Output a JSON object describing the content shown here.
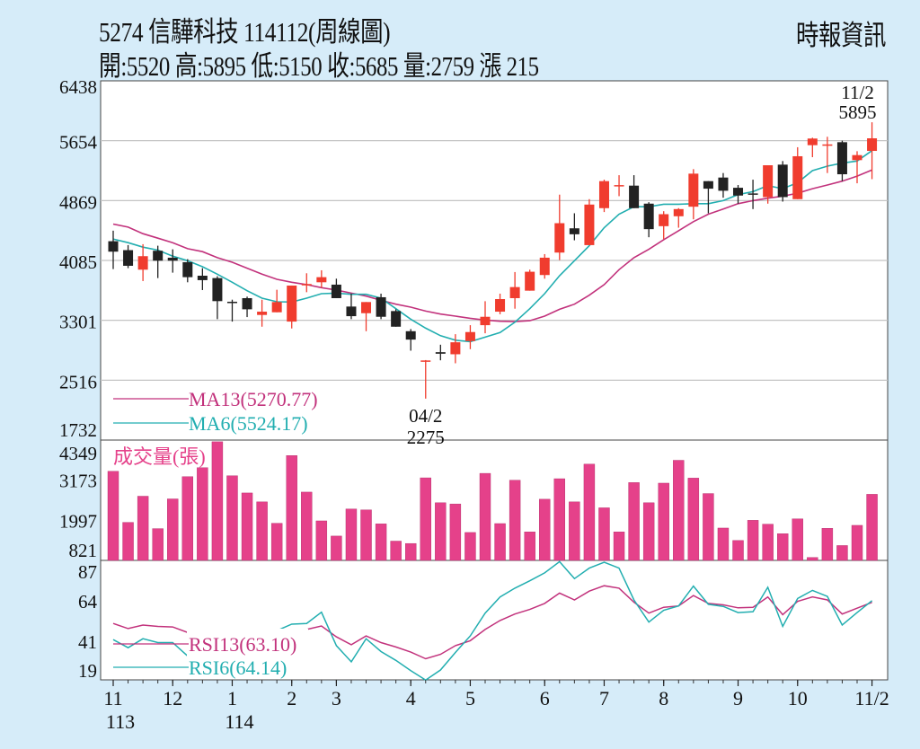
{
  "header": {
    "title": "5274  信驊科技 114112(周線圖)",
    "ohlc_line": "開:5520 高:5895 低:5150 收:5685 量:2759 漲 215",
    "source": "時報資訊"
  },
  "colors": {
    "background": "#d6ecf9",
    "up": "#f03c2e",
    "down": "#222222",
    "ma13": "#c2327c",
    "ma6": "#22aeb0",
    "volume": "#e5418a",
    "rsi13": "#c2327c",
    "rsi6": "#22aeb0"
  },
  "chart_data": [
    {
      "type": "candlestick",
      "panel": "price",
      "ylim": [
        1732,
        6438
      ],
      "yticks": [
        6438,
        5654,
        4869,
        4085,
        3301,
        2516,
        1732
      ],
      "grid": true,
      "ohlc": [
        [
          4337,
          4475,
          3972,
          4200
        ],
        [
          4220,
          4286,
          3984,
          4015
        ],
        [
          3964,
          4298,
          3815,
          4141
        ],
        [
          4212,
          4278,
          3854,
          4082
        ],
        [
          4121,
          4231,
          3925,
          4082
        ],
        [
          4062,
          4102,
          3799,
          3866
        ],
        [
          3885,
          3984,
          3697,
          3827
        ],
        [
          3854,
          3878,
          3316,
          3552
        ],
        [
          3544,
          3571,
          3284,
          3540
        ],
        [
          3591,
          3611,
          3343,
          3445
        ],
        [
          3371,
          3571,
          3217,
          3414
        ],
        [
          3406,
          3701,
          3406,
          3540
        ],
        [
          3284,
          3756,
          3194,
          3756
        ],
        [
          3768,
          3917,
          3669,
          3776
        ],
        [
          3799,
          3956,
          3728,
          3866
        ],
        [
          3768,
          3846,
          3591,
          3591
        ],
        [
          3481,
          3650,
          3316,
          3355
        ],
        [
          3394,
          3540,
          3158,
          3540
        ],
        [
          3603,
          3650,
          3316,
          3347
        ],
        [
          3422,
          3445,
          3217,
          3217
        ],
        [
          3158,
          3186,
          2903,
          3048
        ],
        [
          2765,
          2780,
          2275,
          2775
        ],
        [
          2883,
          2981,
          2777,
          2863
        ],
        [
          2856,
          3119,
          2738,
          3013
        ],
        [
          3029,
          3237,
          2923,
          3147
        ],
        [
          3237,
          3551,
          3131,
          3347
        ],
        [
          3414,
          3650,
          3380,
          3579
        ],
        [
          3591,
          3933,
          3453,
          3736
        ],
        [
          3689,
          3964,
          3689,
          3937
        ],
        [
          3894,
          4168,
          3846,
          4121
        ],
        [
          4188,
          4947,
          4090,
          4573
        ],
        [
          4506,
          4703,
          4349,
          4428
        ],
        [
          4286,
          4888,
          4286,
          4817
        ],
        [
          4770,
          5143,
          4719,
          5124
        ],
        [
          5070,
          5202,
          4927,
          5072
        ],
        [
          5065,
          5202,
          4770,
          4770
        ],
        [
          4829,
          4848,
          4389,
          4495
        ],
        [
          4534,
          4730,
          4365,
          4691
        ],
        [
          4664,
          4770,
          4514,
          4758
        ],
        [
          4789,
          5281,
          4624,
          5222
        ],
        [
          5124,
          5124,
          4703,
          5025
        ],
        [
          5171,
          5230,
          4907,
          4998
        ],
        [
          5037,
          5073,
          4829,
          4935
        ],
        [
          4963,
          5143,
          4758,
          4955
        ],
        [
          4915,
          5332,
          4829,
          5332
        ],
        [
          5340,
          5387,
          4856,
          4915
        ],
        [
          4888,
          5568,
          4888,
          5450
        ],
        [
          5595,
          5693,
          5438,
          5682
        ],
        [
          5600,
          5705,
          5230,
          5605
        ],
        [
          5634,
          5654,
          5124,
          5214
        ],
        [
          5399,
          5516,
          5096,
          5465
        ],
        [
          5520,
          5895,
          5150,
          5685
        ]
      ],
      "series": [
        {
          "name": "MA13(5270.77)",
          "key": "ma13",
          "values": [
            4561,
            4522,
            4436,
            4377,
            4318,
            4239,
            4200,
            4121,
            4062,
            3984,
            3905,
            3838,
            3799,
            3768,
            3728,
            3697,
            3657,
            3618,
            3563,
            3512,
            3473,
            3422,
            3383,
            3355,
            3327,
            3304,
            3288,
            3284,
            3296,
            3355,
            3445,
            3512,
            3630,
            3768,
            3964,
            4121,
            4231,
            4357,
            4475,
            4593,
            4691,
            4758,
            4829,
            4868,
            4900,
            4927,
            4966,
            5025,
            5073,
            5124,
            5190,
            5271
          ]
        },
        {
          "name": "MA6(5524.17)",
          "key": "ma6",
          "values": [
            4365,
            4318,
            4259,
            4220,
            4141,
            4082,
            4003,
            3905,
            3799,
            3689,
            3591,
            3544,
            3540,
            3591,
            3650,
            3657,
            3642,
            3642,
            3591,
            3453,
            3316,
            3198,
            3099,
            3040,
            3021,
            3080,
            3140,
            3276,
            3453,
            3650,
            3885,
            4082,
            4278,
            4514,
            4691,
            4789,
            4789,
            4821,
            4821,
            4829,
            4829,
            4868,
            4947,
            4986,
            5065,
            5025,
            5104,
            5261,
            5320,
            5360,
            5387,
            5524
          ]
        }
      ],
      "annotations": [
        {
          "index": 51,
          "at": "high",
          "lines": [
            "11/2",
            "5895"
          ]
        },
        {
          "index": 21,
          "at": "low",
          "lines": [
            "04/2",
            "2275"
          ]
        }
      ]
    },
    {
      "type": "bar",
      "panel": "volume",
      "title": "成交量(張)",
      "ylim": [
        821,
        4349
      ],
      "yticks": [
        4349,
        3173,
        1997,
        821
      ],
      "values": [
        3434,
        1936,
        2703,
        1753,
        2624,
        3277,
        3539,
        4300,
        3303,
        2798,
        2537,
        1910,
        3896,
        2824,
        1980,
        1535,
        2328,
        2302,
        1892,
        1387,
        1317,
        3242,
        2511,
        2476,
        1640,
        3373,
        1901,
        3173,
        1657,
        2615,
        3216,
        2537,
        3643,
        2363,
        1657,
        3103,
        2511,
        3086,
        3756,
        3234,
        2781,
        1770,
        1405,
        1997,
        1884,
        1605,
        2040,
        908,
        1762,
        1257,
        1849,
        2759
      ]
    },
    {
      "type": "line",
      "panel": "rsi",
      "ylim": [
        19,
        87
      ],
      "yticks": [
        87,
        64,
        41,
        19
      ],
      "series": [
        {
          "name": "RSI13(63.10)",
          "key": "rsi13",
          "values": [
            51.1,
            48.2,
            50.2,
            49.4,
            49.1,
            46.0,
            45.7,
            45,
            44,
            43,
            44,
            46,
            47.4,
            47.7,
            49.7,
            43.5,
            39.0,
            44.0,
            40.2,
            37.7,
            34.8,
            31.0,
            33.5,
            38.5,
            41.3,
            47.7,
            52.8,
            56.5,
            59.1,
            62.5,
            68.4,
            64.5,
            69.5,
            72.6,
            71.2,
            63.2,
            57.0,
            60.3,
            61.1,
            67.0,
            62.5,
            61.7,
            60.0,
            60.3,
            66.2,
            56.1,
            63.7,
            66.2,
            64.5,
            56.5,
            59.8,
            63.1
          ]
        },
        {
          "name": "RSI6(64.14)",
          "key": "rsi6",
          "values": [
            41.9,
            37.3,
            42.4,
            40.2,
            40.2,
            32.6,
            30,
            28,
            30,
            35,
            42,
            47,
            50.7,
            51.1,
            57.5,
            38.5,
            29.3,
            42.4,
            35.1,
            30.1,
            24.2,
            18.9,
            24.6,
            34.6,
            44.0,
            57.0,
            66.2,
            71.2,
            75.4,
            79.9,
            86.3,
            76.6,
            82.6,
            86.0,
            82.6,
            64.5,
            51.9,
            58.6,
            61.1,
            72.4,
            62.0,
            60.8,
            57.3,
            57.8,
            71.7,
            49.4,
            65.3,
            69.9,
            66.5,
            50.2,
            57.3,
            64.1
          ]
        }
      ]
    }
  ],
  "xaxis": {
    "ticks": [
      {
        "index": 0,
        "label": "11",
        "sub": "113"
      },
      {
        "index": 4,
        "label": "12",
        "sub": ""
      },
      {
        "index": 8,
        "label": "1",
        "sub": "114"
      },
      {
        "index": 12,
        "label": "2",
        "sub": ""
      },
      {
        "index": 15,
        "label": "3",
        "sub": ""
      },
      {
        "index": 20,
        "label": "4",
        "sub": ""
      },
      {
        "index": 24,
        "label": "5",
        "sub": ""
      },
      {
        "index": 29,
        "label": "6",
        "sub": ""
      },
      {
        "index": 33,
        "label": "7",
        "sub": ""
      },
      {
        "index": 37,
        "label": "8",
        "sub": ""
      },
      {
        "index": 42,
        "label": "9",
        "sub": ""
      },
      {
        "index": 46,
        "label": "10",
        "sub": ""
      },
      {
        "index": 51,
        "label": "11/2",
        "sub": ""
      }
    ]
  }
}
